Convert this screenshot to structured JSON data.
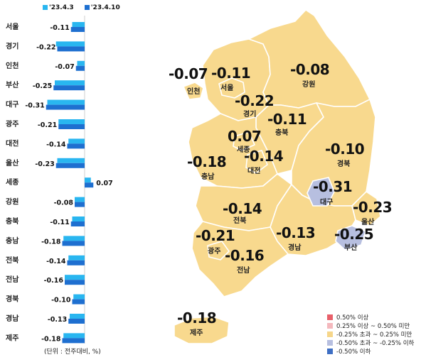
{
  "chart_data": {
    "type": "bar",
    "orientation": "horizontal",
    "categories": [
      "서울",
      "경기",
      "인천",
      "부산",
      "대구",
      "광주",
      "대전",
      "울산",
      "세종",
      "강원",
      "충북",
      "충남",
      "전북",
      "전남",
      "경북",
      "경남",
      "제주"
    ],
    "series": [
      {
        "name": "'23.4.3",
        "values": [
          -0.1,
          -0.23,
          -0.06,
          -0.24,
          -0.3,
          -0.21,
          -0.13,
          -0.22,
          0.05,
          -0.08,
          -0.1,
          -0.17,
          -0.13,
          -0.16,
          -0.09,
          -0.12,
          -0.17
        ],
        "color": "#29b6f0"
      },
      {
        "name": "'23.4.10",
        "values": [
          -0.11,
          -0.22,
          -0.07,
          -0.25,
          -0.31,
          -0.21,
          -0.14,
          -0.23,
          0.07,
          -0.08,
          -0.11,
          -0.18,
          -0.14,
          -0.16,
          -0.1,
          -0.13,
          -0.18
        ],
        "color": "#1e6fd0"
      }
    ],
    "value_labels": [
      "-0.11",
      "-0.22",
      "-0.07",
      "-0.25",
      "-0.31",
      "-0.21",
      "-0.14",
      "-0.23",
      "0.07",
      "-0.08",
      "-0.11",
      "-0.18",
      "-0.14",
      "-0.16",
      "-0.10",
      "-0.13",
      "-0.18"
    ],
    "xlim": [
      -0.32,
      0.08
    ],
    "legend_position": "top",
    "unit_note": "(단위 : 전주대비, %)"
  },
  "map": {
    "regions": [
      {
        "name": "인천",
        "value": "-0.07"
      },
      {
        "name": "서울",
        "value": "-0.11"
      },
      {
        "name": "강원",
        "value": "-0.08"
      },
      {
        "name": "경기",
        "value": "-0.22"
      },
      {
        "name": "충북",
        "value": "-0.11"
      },
      {
        "name": "세종",
        "value": "0.07"
      },
      {
        "name": "충남",
        "value": "-0.18"
      },
      {
        "name": "대전",
        "value": "-0.14"
      },
      {
        "name": "경북",
        "value": "-0.10"
      },
      {
        "name": "대구",
        "value": "-0.31"
      },
      {
        "name": "울산",
        "value": "-0.23"
      },
      {
        "name": "전북",
        "value": "-0.14"
      },
      {
        "name": "광주",
        "value": "-0.21"
      },
      {
        "name": "경남",
        "value": "-0.13"
      },
      {
        "name": "부산",
        "value": "-0.25"
      },
      {
        "name": "전남",
        "value": "-0.16"
      },
      {
        "name": "제주",
        "value": "-0.18"
      }
    ],
    "legend": [
      {
        "label": "0.50% 이상",
        "color": "#e8606a"
      },
      {
        "label": "0.25% 이상 ~ 0.50% 미만",
        "color": "#f4b8bd"
      },
      {
        "label": "-0.25% 초과 ~ 0.25% 미만",
        "color": "#f6d68a"
      },
      {
        "label": "-0.50% 초과 ~ -0.25% 이하",
        "color": "#b7bfe0"
      },
      {
        "label": "-0.50% 이하",
        "color": "#3e6fc4"
      }
    ],
    "land_color": "#f8d98e",
    "low_color": "#b7bfe0"
  }
}
